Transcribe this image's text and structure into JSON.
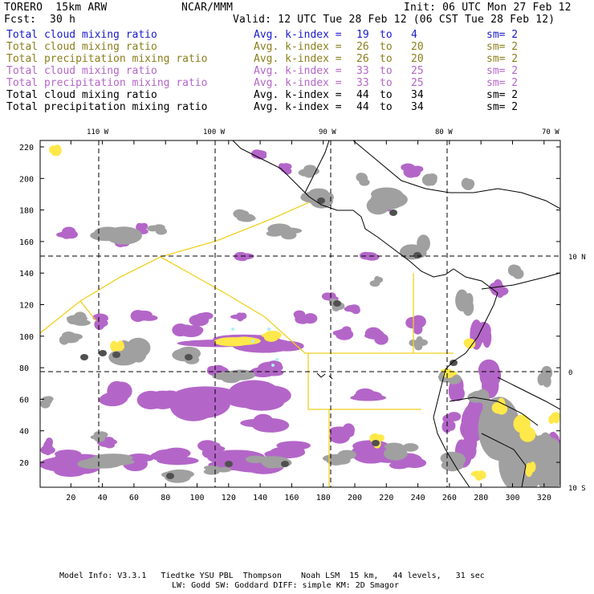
{
  "header": {
    "model": "TORERO  15km ARW",
    "org": "NCAR/MMM",
    "init": "Init: 06 UTC Mon 27 Feb 12",
    "fcst_label": "Fcst:",
    "fcst_value": "30 h",
    "valid": "Valid: 12 UTC Tue 28 Feb 12 (06 CST Tue 28 Feb 12)"
  },
  "legend": [
    {
      "field": "Total cloud mixing ratio",
      "index_label": "Avg. k-index =",
      "hi": "19",
      "to": "to",
      "lo": "4",
      "sm": "sm= 2",
      "color": "#1a1acd"
    },
    {
      "field": "Total cloud mixing ratio",
      "index_label": "Avg. k-index =",
      "hi": "26",
      "to": "to",
      "lo": "20",
      "sm": "sm= 2",
      "color": "#8a7f1a"
    },
    {
      "field": "Total precipitation mixing ratio",
      "index_label": "Avg. k-index =",
      "hi": "26",
      "to": "to",
      "lo": "20",
      "sm": "sm= 2",
      "color": "#8a7f1a"
    },
    {
      "field": "Total cloud mixing ratio",
      "index_label": "Avg. k-index =",
      "hi": "33",
      "to": "to",
      "lo": "25",
      "sm": "sm= 2",
      "color": "#b366c8"
    },
    {
      "field": "Total precipitation mixing ratio",
      "index_label": "Avg. k-index =",
      "hi": "33",
      "to": "to",
      "lo": "25",
      "sm": "sm= 2",
      "color": "#b366c8"
    },
    {
      "field": "Total cloud mixing ratio",
      "index_label": "Avg. k-index =",
      "hi": "44",
      "to": "to",
      "lo": "34",
      "sm": "sm= 2",
      "color": "#000000"
    },
    {
      "field": "Total precipitation mixing ratio",
      "index_label": "Avg. k-index =",
      "hi": "44",
      "to": "to",
      "lo": "34",
      "sm": "sm= 2",
      "color": "#000000"
    }
  ],
  "map": {
    "lon_labels": [
      "110 W",
      "100 W",
      "90 W",
      "80 W",
      "70 W"
    ],
    "lat_labels": [
      "10 N",
      "0",
      "10 S"
    ],
    "y_ticks": [
      "220",
      "200",
      "180",
      "160",
      "140",
      "120",
      "100",
      "80",
      "60",
      "40",
      "20"
    ],
    "x_ticks": [
      "20",
      "40",
      "60",
      "80",
      "100",
      "120",
      "140",
      "160",
      "180",
      "200",
      "220",
      "240",
      "260",
      "280",
      "300",
      "320"
    ],
    "colors": {
      "purple": "#b366c8",
      "gray": "#a0a0a0",
      "dark": "#505050",
      "yellow": "#ffe84a",
      "cyan": "#a8f0f0"
    }
  },
  "footer": {
    "line1": "Model Info: V3.3.1   Tiedtke YSU PBL  Thompson    Noah LSM  15 km,   44 levels,   31 sec",
    "line2": "LW: Godd SW: Goddard DIFF: simple KM: 2D Smagor"
  }
}
